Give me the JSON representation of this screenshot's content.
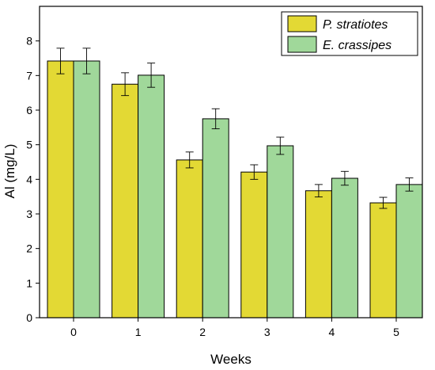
{
  "chart_data": {
    "type": "bar",
    "title": "",
    "xlabel": "Weeks",
    "ylabel": "Al (mg/L)",
    "categories": [
      "0",
      "1",
      "2",
      "3",
      "4",
      "5"
    ],
    "ylim": [
      0,
      9
    ],
    "yticks": [
      0,
      1,
      2,
      3,
      4,
      5,
      6,
      7,
      8
    ],
    "grid": false,
    "legend_position": "top-right",
    "series": [
      {
        "name": "P. stratiotes",
        "color": "#e3d934",
        "values": [
          7.42,
          6.75,
          4.56,
          4.21,
          3.67,
          3.32
        ],
        "errors": [
          0.37,
          0.33,
          0.23,
          0.21,
          0.18,
          0.16
        ]
      },
      {
        "name": "E. crassipes",
        "color": "#a0d89a",
        "values": [
          7.42,
          7.01,
          5.75,
          4.97,
          4.03,
          3.85
        ],
        "errors": [
          0.37,
          0.35,
          0.29,
          0.25,
          0.2,
          0.19
        ]
      }
    ]
  }
}
